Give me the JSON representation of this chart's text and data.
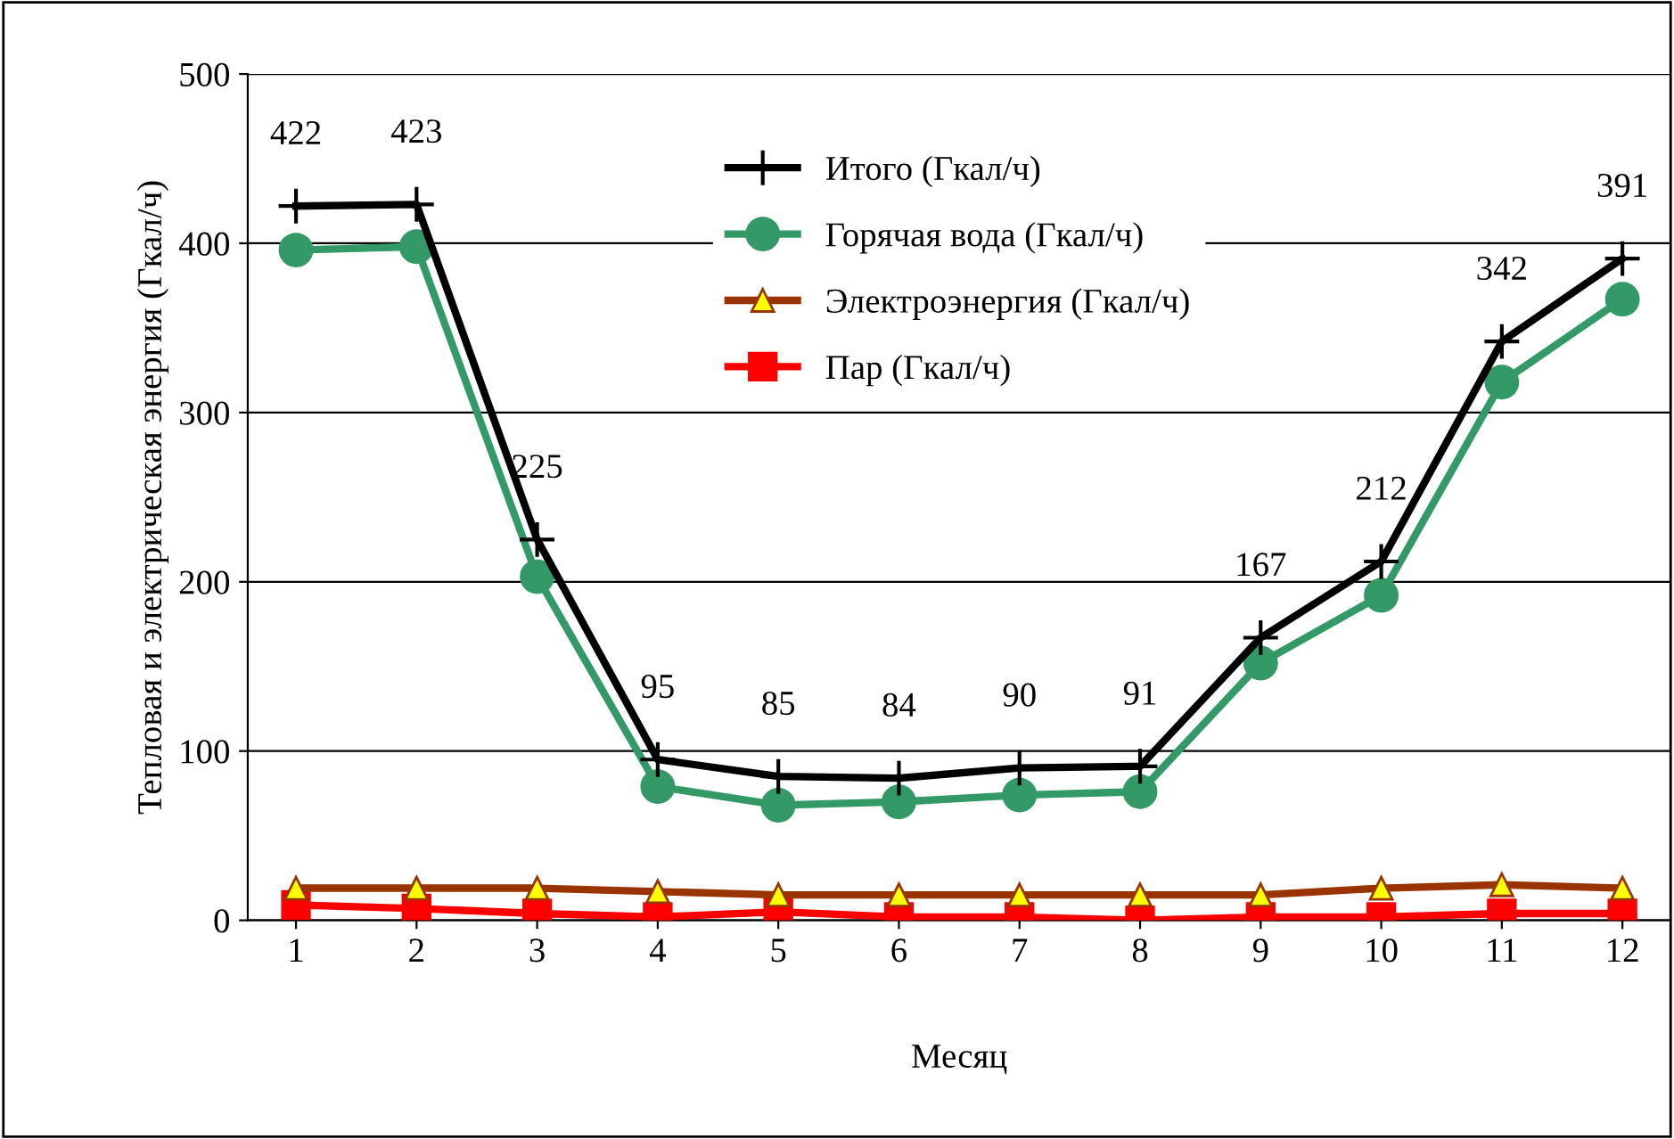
{
  "chart_data": {
    "type": "line",
    "xlabel": "Месяц",
    "ylabel": "Тепловая и электрическая энергия (Гкал/ч)",
    "x": [
      1,
      2,
      3,
      4,
      5,
      6,
      7,
      8,
      9,
      10,
      11,
      12
    ],
    "series": [
      {
        "name": "Итого (Гкал/ч)",
        "color": "#000000",
        "marker": "cross",
        "data_labels": true,
        "values": [
          422,
          423,
          225,
          95,
          85,
          84,
          90,
          91,
          167,
          212,
          342,
          391
        ]
      },
      {
        "name": "Горячая вода (Гкал/ч)",
        "color": "#339966",
        "marker": "circle",
        "values": [
          396,
          398,
          203,
          79,
          68,
          70,
          74,
          76,
          152,
          192,
          318,
          367
        ]
      },
      {
        "name": "Электроэнергия (Гкал/ч)",
        "color": "#993300",
        "marker": "triangle",
        "values": [
          19,
          19,
          19,
          17,
          15,
          15,
          15,
          15,
          15,
          19,
          21,
          19
        ]
      },
      {
        "name": "Пар (Гкал/ч)",
        "color": "#ff0000",
        "marker": "square",
        "values": [
          9,
          7,
          4,
          2,
          5,
          2,
          2,
          0,
          2,
          2,
          4,
          4
        ]
      }
    ],
    "xlim": [
      0.6,
      12.4
    ],
    "xticks": [
      1,
      2,
      3,
      4,
      5,
      6,
      7,
      8,
      9,
      10,
      11,
      12
    ],
    "ylim": [
      0,
      500
    ],
    "yticks": [
      0,
      100,
      200,
      300,
      400,
      500
    ],
    "grid": "y",
    "legend": "top"
  }
}
